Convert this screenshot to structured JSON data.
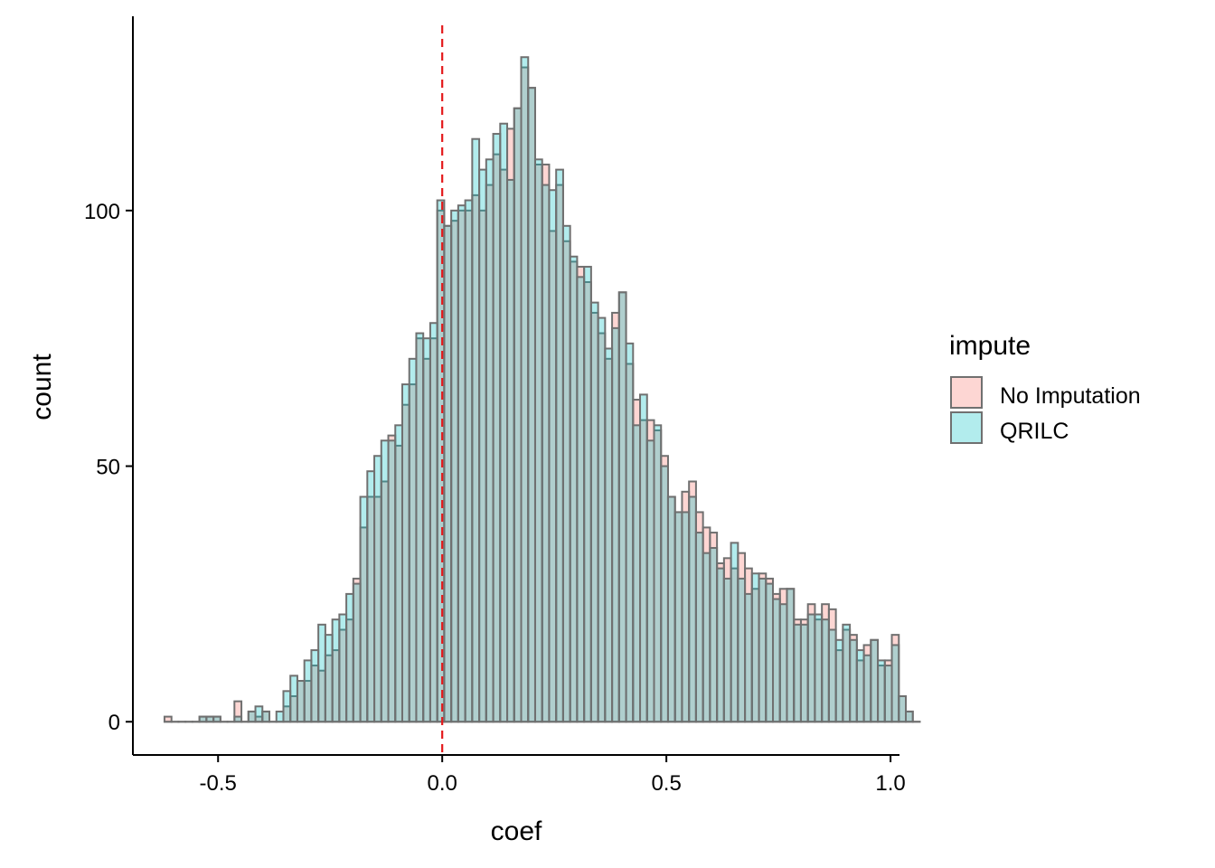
{
  "chart_data": {
    "type": "histogram",
    "xlabel": "coef",
    "ylabel": "count",
    "xlim": [
      -0.69,
      1.02
    ],
    "ylim": [
      -6.5,
      138
    ],
    "x_ticks": [
      -0.5,
      0.0,
      0.5,
      1.0
    ],
    "x_tick_labels": [
      "-0.5",
      "0.0",
      "0.5",
      "1.0"
    ],
    "y_ticks": [
      0,
      50,
      100
    ],
    "y_tick_labels": [
      "0",
      "50",
      "100"
    ],
    "bin_start": -0.6195,
    "bin_width": 0.0156,
    "reference_line": {
      "x": 0.0,
      "color": "#e41a1c",
      "style": "dashed"
    },
    "grid": false,
    "legend": {
      "title": "impute",
      "position": "right",
      "entries": [
        {
          "label": "No Imputation",
          "color": "#F8766D"
        },
        {
          "label": "QRILC",
          "color": "#00BFC4"
        }
      ]
    },
    "series": [
      {
        "name": "No Imputation",
        "color": "#F8766D",
        "values": [
          1,
          0,
          0,
          0,
          0,
          1,
          1,
          1,
          0,
          0,
          4,
          0,
          2,
          1,
          2,
          0,
          0,
          3,
          5,
          8,
          8,
          11,
          10,
          13,
          14,
          18,
          20,
          28,
          38,
          44,
          44,
          47,
          56,
          54,
          62,
          66,
          75,
          71,
          75,
          100,
          97,
          98,
          100,
          100,
          103,
          100,
          105,
          111,
          108,
          116,
          120,
          128,
          124,
          109,
          109,
          96,
          105,
          94,
          90,
          89,
          86,
          80,
          76,
          71,
          80,
          84,
          70,
          63,
          59,
          59,
          57,
          52,
          44,
          41,
          45,
          47,
          41,
          38,
          37,
          31,
          32,
          30,
          33,
          30,
          26,
          29,
          28,
          25,
          26,
          26,
          20,
          20,
          23,
          20,
          23,
          22,
          14,
          18,
          17,
          12,
          15,
          16,
          11,
          12,
          17,
          5,
          2,
          0
        ]
      },
      {
        "name": "QRILC",
        "color": "#00BFC4",
        "values": [
          0,
          0,
          0,
          0,
          0,
          1,
          1,
          1,
          0,
          0,
          1,
          0,
          2,
          3,
          2,
          0,
          2,
          6,
          9,
          8,
          12,
          14,
          19,
          17,
          20,
          21,
          25,
          27,
          44,
          49,
          52,
          55,
          55,
          58,
          66,
          71,
          76,
          75,
          78,
          102,
          97,
          100,
          101,
          102,
          114,
          108,
          110,
          115,
          117,
          106,
          120,
          130,
          124,
          110,
          105,
          104,
          108,
          97,
          91,
          87,
          89,
          82,
          79,
          73,
          77,
          84,
          74,
          58,
          64,
          55,
          58,
          50,
          44,
          41,
          41,
          44,
          37,
          33,
          34,
          30,
          28,
          35,
          28,
          25,
          29,
          28,
          27,
          24,
          23,
          26,
          19,
          19,
          21,
          21,
          20,
          18,
          16,
          19,
          16,
          14,
          13,
          16,
          12,
          11,
          15,
          5,
          2,
          0
        ]
      }
    ]
  }
}
